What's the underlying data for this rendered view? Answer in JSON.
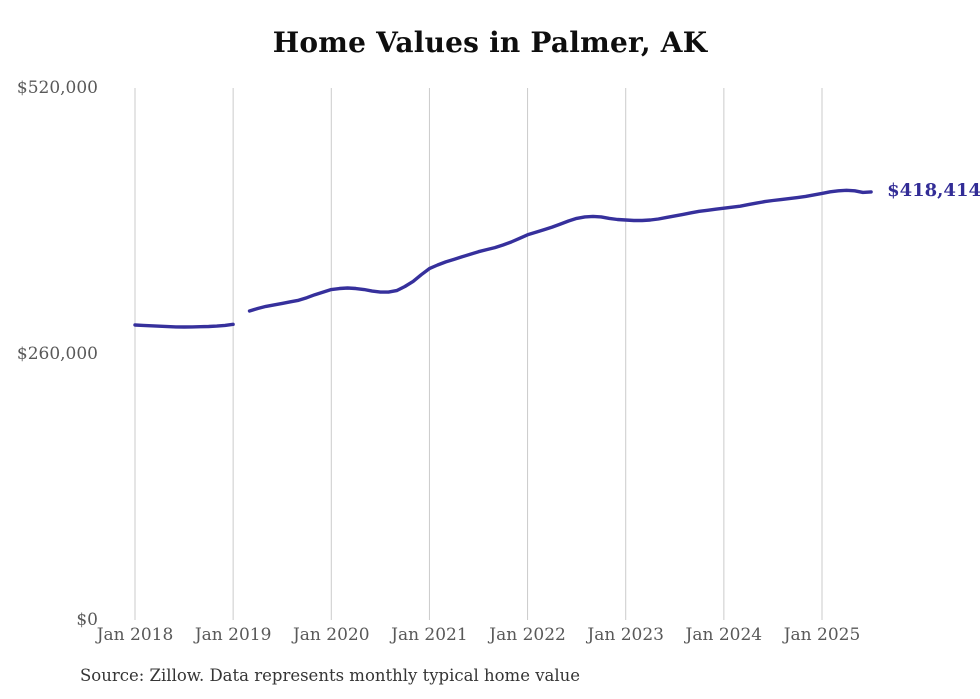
{
  "chart": {
    "title": "Home Values in Palmer, AK"
  },
  "source": {
    "note": "Source: Zillow. Data represents monthly typical home value"
  },
  "chart_data": {
    "type": "line",
    "title": "Home Values in Palmer, AK",
    "series_name": "Monthly typical home value",
    "start_month": "Jan 2018",
    "end_month": "Jul 2025",
    "end_label": "$418,414",
    "final_value": 418414,
    "ylim": [
      0,
      520000
    ],
    "y_ticks": [
      {
        "label": "$520,000",
        "value": 520000
      },
      {
        "label": "$260,000",
        "value": 260000
      },
      {
        "label": "$0",
        "value": 0
      }
    ],
    "x_ticks": [
      "Jan 2018",
      "Jan 2019",
      "Jan 2020",
      "Jan 2021",
      "Jan 2022",
      "Jan 2023",
      "Jan 2024",
      "Jan 2025"
    ],
    "grid": "vertical-only",
    "legend": "none",
    "line_color": "#36309c",
    "note": "Gap in data at Feb 2019 (null value splits the line into two segments)",
    "values_monthly": [
      288300,
      288000,
      287600,
      287200,
      286800,
      286500,
      286400,
      286500,
      286700,
      286900,
      287300,
      288000,
      289000,
      null,
      302000,
      304500,
      306500,
      308000,
      309500,
      311000,
      312500,
      315000,
      318000,
      320500,
      323000,
      324000,
      324500,
      324000,
      323000,
      321500,
      320500,
      320500,
      322000,
      326000,
      331000,
      337500,
      343500,
      347000,
      350000,
      352500,
      355000,
      357500,
      360000,
      362000,
      364000,
      366500,
      369500,
      373000,
      376500,
      379000,
      381500,
      384000,
      387000,
      390000,
      392500,
      394000,
      394500,
      394000,
      392500,
      391500,
      391000,
      390500,
      390500,
      391000,
      392000,
      393500,
      395000,
      396500,
      398000,
      399500,
      400500,
      401500,
      402500,
      403500,
      404500,
      406000,
      407500,
      409000,
      410000,
      411000,
      412000,
      413000,
      414000,
      415500,
      417000,
      418500,
      419500,
      420000,
      419500,
      418000,
      418414
    ],
    "source_note": "Source: Zillow. Data represents monthly typical home value"
  }
}
